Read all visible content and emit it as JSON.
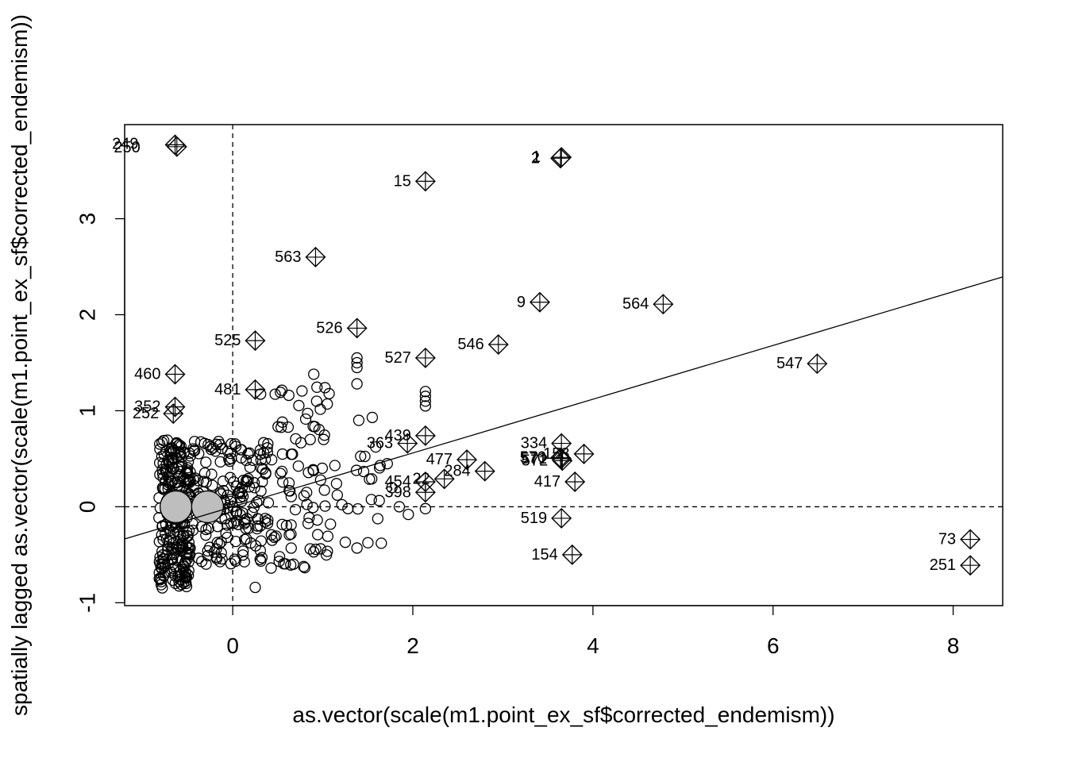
{
  "chart_data": {
    "type": "scatter",
    "title": "",
    "xlabel": "as.vector(scale(m1.point_ex_sf$corrected_endemism))",
    "ylabel": "spatially lagged as.vector(scale(m1.point_ex_sf$corrected_endemism))",
    "xlim": [
      -1.2,
      8.55
    ],
    "ylim": [
      -1.03,
      3.98
    ],
    "x_ticks": [
      0,
      2,
      4,
      6,
      8
    ],
    "y_ticks": [
      -1,
      0,
      1,
      2,
      3
    ],
    "reference_lines": {
      "x": 0,
      "y": 0,
      "style": "dashed"
    },
    "regression_line": {
      "intercept": 0.0,
      "slope": 0.28
    },
    "grid": false,
    "legend": "none",
    "highlighted_points": [
      {
        "label": "249",
        "x": -0.64,
        "y": 3.77
      },
      {
        "label": "250",
        "x": -0.62,
        "y": 3.75
      },
      {
        "label": "1",
        "x": 3.65,
        "y": 3.64
      },
      {
        "label": "2",
        "x": 3.64,
        "y": 3.63
      },
      {
        "label": "15",
        "x": 2.14,
        "y": 3.39
      },
      {
        "label": "563",
        "x": 0.92,
        "y": 2.6
      },
      {
        "label": "9",
        "x": 3.41,
        "y": 2.13
      },
      {
        "label": "564",
        "x": 4.78,
        "y": 2.11
      },
      {
        "label": "526",
        "x": 1.38,
        "y": 1.86
      },
      {
        "label": "525",
        "x": 0.25,
        "y": 1.73
      },
      {
        "label": "546",
        "x": 2.95,
        "y": 1.69
      },
      {
        "label": "527",
        "x": 2.14,
        "y": 1.55
      },
      {
        "label": "547",
        "x": 6.49,
        "y": 1.49
      },
      {
        "label": "460",
        "x": -0.64,
        "y": 1.38
      },
      {
        "label": "481",
        "x": 0.25,
        "y": 1.22
      },
      {
        "label": "352",
        "x": -0.64,
        "y": 1.04
      },
      {
        "label": "252",
        "x": -0.66,
        "y": 0.97
      },
      {
        "label": "439",
        "x": 2.14,
        "y": 0.74
      },
      {
        "label": "363",
        "x": 1.94,
        "y": 0.66
      },
      {
        "label": "334",
        "x": 3.65,
        "y": 0.66
      },
      {
        "label": "158",
        "x": 3.9,
        "y": 0.55
      },
      {
        "label": "570",
        "x": 3.64,
        "y": 0.51
      },
      {
        "label": "571",
        "x": 3.65,
        "y": 0.5
      },
      {
        "label": "572",
        "x": 3.66,
        "y": 0.48
      },
      {
        "label": "477",
        "x": 2.6,
        "y": 0.49
      },
      {
        "label": "284",
        "x": 2.8,
        "y": 0.37
      },
      {
        "label": "22",
        "x": 2.35,
        "y": 0.29
      },
      {
        "label": "454",
        "x": 2.14,
        "y": 0.26
      },
      {
        "label": "417",
        "x": 3.8,
        "y": 0.26
      },
      {
        "label": "398",
        "x": 2.14,
        "y": 0.15
      },
      {
        "label": "519",
        "x": 3.65,
        "y": -0.12
      },
      {
        "label": "154",
        "x": 3.77,
        "y": -0.5
      },
      {
        "label": "73",
        "x": 8.19,
        "y": -0.34
      },
      {
        "label": "251",
        "x": 8.19,
        "y": -0.61
      }
    ],
    "influential_large_points": [
      {
        "x": -0.63,
        "y": 0.0
      },
      {
        "x": -0.28,
        "y": 0.0
      }
    ]
  }
}
